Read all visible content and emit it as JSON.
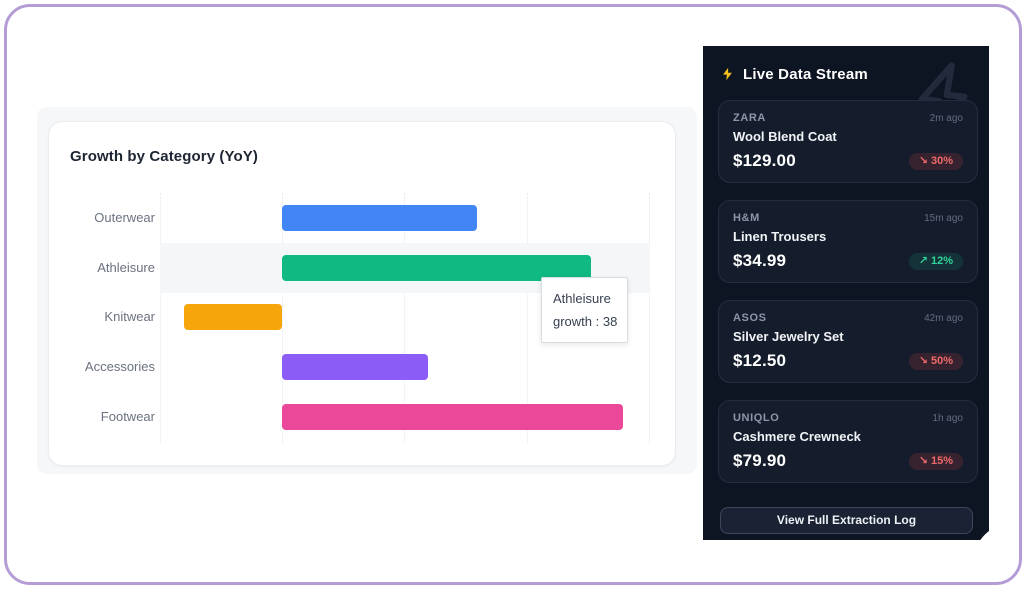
{
  "chart_card": {
    "title": "Growth by Category (YoY)",
    "tooltip": {
      "line1": "Athleisure",
      "line2": "growth : 38"
    }
  },
  "chart_data": {
    "type": "bar",
    "orientation": "horizontal",
    "title": "Growth by Category (YoY)",
    "categories": [
      "Outerwear",
      "Athleisure",
      "Knitwear",
      "Accessories",
      "Footwear"
    ],
    "values": [
      24,
      38,
      -12,
      18,
      42
    ],
    "bar_colors": [
      "#4285f4",
      "#10b981",
      "#f6a60b",
      "#8b5cf6",
      "#ec4899"
    ],
    "xlim": [
      -15,
      45
    ],
    "grid": "vertical-dotted",
    "highlighted_category": "Athleisure",
    "tooltip": {
      "category": "Athleisure",
      "series": "growth",
      "value": 38
    },
    "legend": "none",
    "tick_labels_visible": false
  },
  "live_panel": {
    "title": "Live Data Stream",
    "title_icon": "lightning-bolt-icon",
    "watermark_icon": "lightning-bolt-outline-icon",
    "items": [
      {
        "brand": "ZARA",
        "time": "2m ago",
        "product": "Wool Blend Coat",
        "price": "$129.00",
        "arrow": "↘",
        "change": "30%",
        "direction": "down"
      },
      {
        "brand": "H&M",
        "time": "15m ago",
        "product": "Linen Trousers",
        "price": "$34.99",
        "arrow": "↗",
        "change": "12%",
        "direction": "up"
      },
      {
        "brand": "ASOS",
        "time": "42m ago",
        "product": "Silver Jewelry Set",
        "price": "$12.50",
        "arrow": "↘",
        "change": "50%",
        "direction": "down"
      },
      {
        "brand": "UNIQLO",
        "time": "1h ago",
        "product": "Cashmere Crewneck",
        "price": "$79.90",
        "arrow": "↘",
        "change": "15%",
        "direction": "down"
      }
    ],
    "button_label": "View Full Extraction Log"
  },
  "colors": {
    "frame_purple": "#b49dd6",
    "panel_bg": "#0e1522",
    "card_bg": "#151d2c",
    "accent_yellow": "#f7c01d",
    "badge_down": "#f06a6a",
    "badge_up": "#2fd39a"
  }
}
